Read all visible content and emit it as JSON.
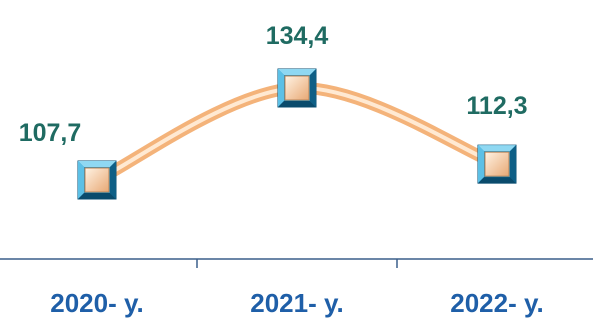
{
  "chart_data": {
    "type": "line",
    "categories": [
      "2020- y.",
      "2021- y.",
      "2022- y."
    ],
    "values": [
      107.7,
      134.4,
      112.3
    ],
    "data_labels": [
      "107,7",
      "134,4",
      "112,3"
    ],
    "title": "",
    "xlabel": "",
    "ylabel": "",
    "grid": false,
    "legend": "none"
  },
  "colors": {
    "label": "#1f6b62",
    "tick_label": "#1f5fa8",
    "axis": "#3a5f8a",
    "line_outer": "#f4b37a",
    "line_inner": "#ffe9d2",
    "marker_outer": "#1e8fc0",
    "marker_light": "#8fd8f2",
    "marker_dark": "#0e5f86",
    "marker_center": "#f2c79a"
  }
}
